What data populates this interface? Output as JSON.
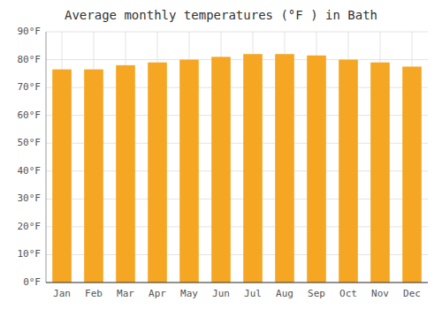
{
  "chart_data": {
    "type": "bar",
    "title": "Average monthly temperatures (°F ) in Bath",
    "categories": [
      "Jan",
      "Feb",
      "Mar",
      "Apr",
      "May",
      "Jun",
      "Jul",
      "Aug",
      "Sep",
      "Oct",
      "Nov",
      "Dec"
    ],
    "values": [
      76.5,
      76.5,
      78.0,
      79.0,
      80.0,
      81.0,
      82.0,
      82.0,
      81.5,
      80.0,
      79.0,
      77.5
    ],
    "color": "#F5A623",
    "ylim": [
      0,
      90
    ],
    "yticks": [
      {
        "value": 0,
        "label": "0°F"
      },
      {
        "value": 10,
        "label": "10°F"
      },
      {
        "value": 20,
        "label": "20°F"
      },
      {
        "value": 30,
        "label": "30°F"
      },
      {
        "value": 40,
        "label": "40°F"
      },
      {
        "value": 50,
        "label": "50°F"
      },
      {
        "value": 60,
        "label": "60°F"
      },
      {
        "value": 70,
        "label": "70°F"
      },
      {
        "value": 80,
        "label": "80°F"
      },
      {
        "value": 90,
        "label": "90°F"
      }
    ],
    "grid": true
  }
}
